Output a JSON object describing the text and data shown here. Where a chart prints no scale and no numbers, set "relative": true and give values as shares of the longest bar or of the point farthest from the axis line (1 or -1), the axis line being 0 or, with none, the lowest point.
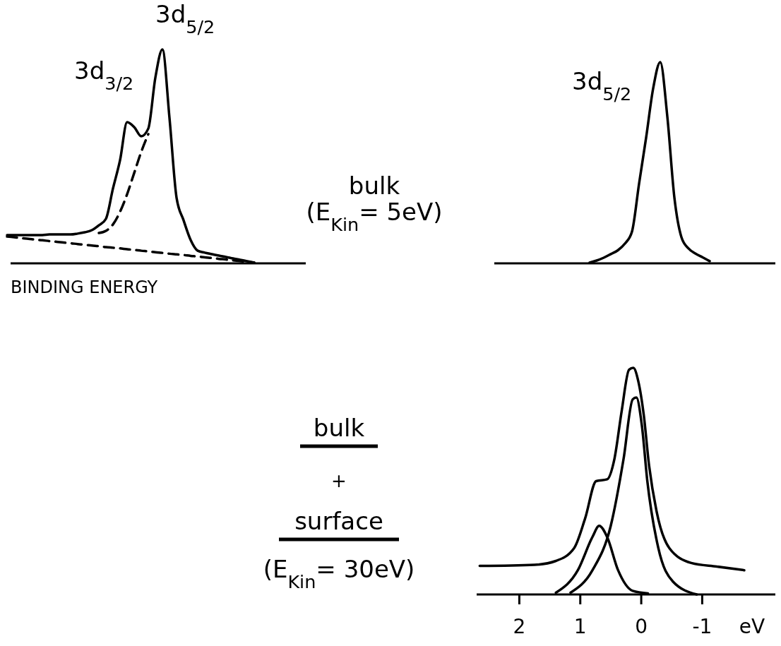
{
  "chart_data": [
    {
      "type": "line",
      "relative": true,
      "xlabel": "BINDING ENERGY",
      "annotations": [
        "3d$_{3/2}$",
        "3d$_{5/2}$"
      ],
      "categories": [
        null,
        null,
        null,
        null,
        null,
        null,
        null,
        null,
        null,
        null,
        null,
        null,
        null,
        null,
        null,
        null,
        null,
        null,
        null,
        null,
        null,
        null,
        null,
        null,
        null,
        null,
        null,
        null,
        null,
        null,
        null,
        null,
        null,
        null,
        null,
        null,
        null,
        null,
        null,
        null,
        null,
        null,
        null
      ],
      "series": [
        {
          "color": "#000000",
          "line_style": "solid",
          "values": [
            0.132,
            0.132,
            0.132,
            0.132,
            0.132,
            0.132,
            0.135,
            0.135,
            0.135,
            0.135,
            0.139,
            0.145,
            0.155,
            0.178,
            0.208,
            0.35,
            0.482,
            0.66,
            0.637,
            0.594,
            0.63,
            0.868,
            1,
            0.68,
            0.307,
            0.201,
            0.109,
            0.059,
            0.05,
            0.043,
            0.036,
            0.03,
            0.023,
            0.017,
            0.01,
            0.003,
            null,
            null,
            null,
            null,
            null,
            null,
            null
          ]
        },
        {
          "color": "#000000",
          "line_style": "dashed",
          "values": [
            null,
            null,
            null,
            null,
            null,
            null,
            null,
            null,
            null,
            null,
            null,
            null,
            null,
            0.142,
            0.152,
            0.182,
            0.241,
            0.323,
            0.422,
            0.521,
            0.604,
            null,
            null,
            null,
            null,
            null,
            null,
            null,
            null,
            null,
            null,
            null,
            null,
            null,
            null,
            null,
            null,
            null,
            null,
            null,
            null,
            null,
            null
          ]
        },
        {
          "color": "#000000",
          "line_style": "dashed",
          "values": [
            0.125,
            0.122,
            0.118,
            0.115,
            0.111,
            0.108,
            0.104,
            0.101,
            0.097,
            0.094,
            0.09,
            0.087,
            0.083,
            0.08,
            0.076,
            0.073,
            0.07,
            0.066,
            0.063,
            0.059,
            0.056,
            0.052,
            0.049,
            0.045,
            0.042,
            0.039,
            0.035,
            0.032,
            0.028,
            0.025,
            0.021,
            0.018,
            0.014,
            0.011,
            0.007,
            0.004,
            null,
            null,
            null,
            null,
            null,
            null,
            null
          ]
        }
      ]
    },
    {
      "type": "line",
      "relative": true,
      "annotations": [
        "3d$_{5/2}$",
        "bulk",
        "(E$_{Kin}$= 5eV)"
      ],
      "categories": [
        null,
        null,
        null,
        null,
        null,
        null,
        null,
        null,
        null,
        null,
        null,
        null,
        null,
        null,
        null,
        null,
        null,
        null,
        null,
        null,
        null,
        null,
        null,
        null,
        null,
        null,
        null,
        null,
        null,
        null,
        null,
        null,
        null,
        null,
        null,
        null,
        null,
        null,
        null,
        null
      ],
      "series": [
        {
          "color": "#000000",
          "values": [
            null,
            null,
            null,
            null,
            null,
            null,
            null,
            null,
            null,
            null,
            null,
            null,
            null,
            0.004,
            0.014,
            0.028,
            0.046,
            0.065,
            0.098,
            0.158,
            0.396,
            0.625,
            0.87,
            1,
            0.73,
            0.327,
            0.13,
            0.074,
            0.048,
            0.03,
            0.011,
            null,
            null,
            null,
            null,
            null,
            null,
            null,
            null,
            null
          ]
        }
      ]
    },
    {
      "type": "line",
      "relative": true,
      "xlabel": "eV",
      "xlim": [
        2.7,
        -2.2
      ],
      "xticks": [
        2,
        1,
        0,
        -1
      ],
      "annotations": [
        "bulk",
        "+",
        "surface",
        "(E$_{Kin}$= 30eV)"
      ],
      "series": [
        {
          "color": "#000000",
          "x": [
            2.65,
            1.75,
            1.4,
            1.1,
            0.92,
            0.74,
            0.56,
            0.44,
            0.32,
            0.2,
            0.13,
            0.05,
            -0.04,
            -0.13,
            -0.25,
            -0.46,
            -0.82,
            -1.24,
            -1.69
          ],
          "values": [
            0.126,
            0.131,
            0.148,
            0.205,
            0.336,
            0.5,
            0.508,
            0.598,
            0.811,
            0.992,
            1,
            0.943,
            0.795,
            0.566,
            0.369,
            0.205,
            0.139,
            0.123,
            0.107
          ]
        },
        {
          "color": "#000000",
          "x": [
            1.16,
            0.8,
            0.5,
            0.29,
            0.14,
            0.08,
            -0.01,
            -0.1,
            -0.28,
            -0.52,
            -0.91
          ],
          "values": [
            0.008,
            0.107,
            0.303,
            0.598,
            0.861,
            0.869,
            0.746,
            0.5,
            0.205,
            0.057,
            0
          ]
        },
        {
          "color": "#000000",
          "x": [
            1.4,
            1.04,
            0.8,
            0.69,
            0.56,
            0.38,
            0.14,
            -0.11
          ],
          "values": [
            0.008,
            0.107,
            0.254,
            0.303,
            0.254,
            0.107,
            0.016,
            0.005
          ]
        }
      ]
    }
  ]
}
